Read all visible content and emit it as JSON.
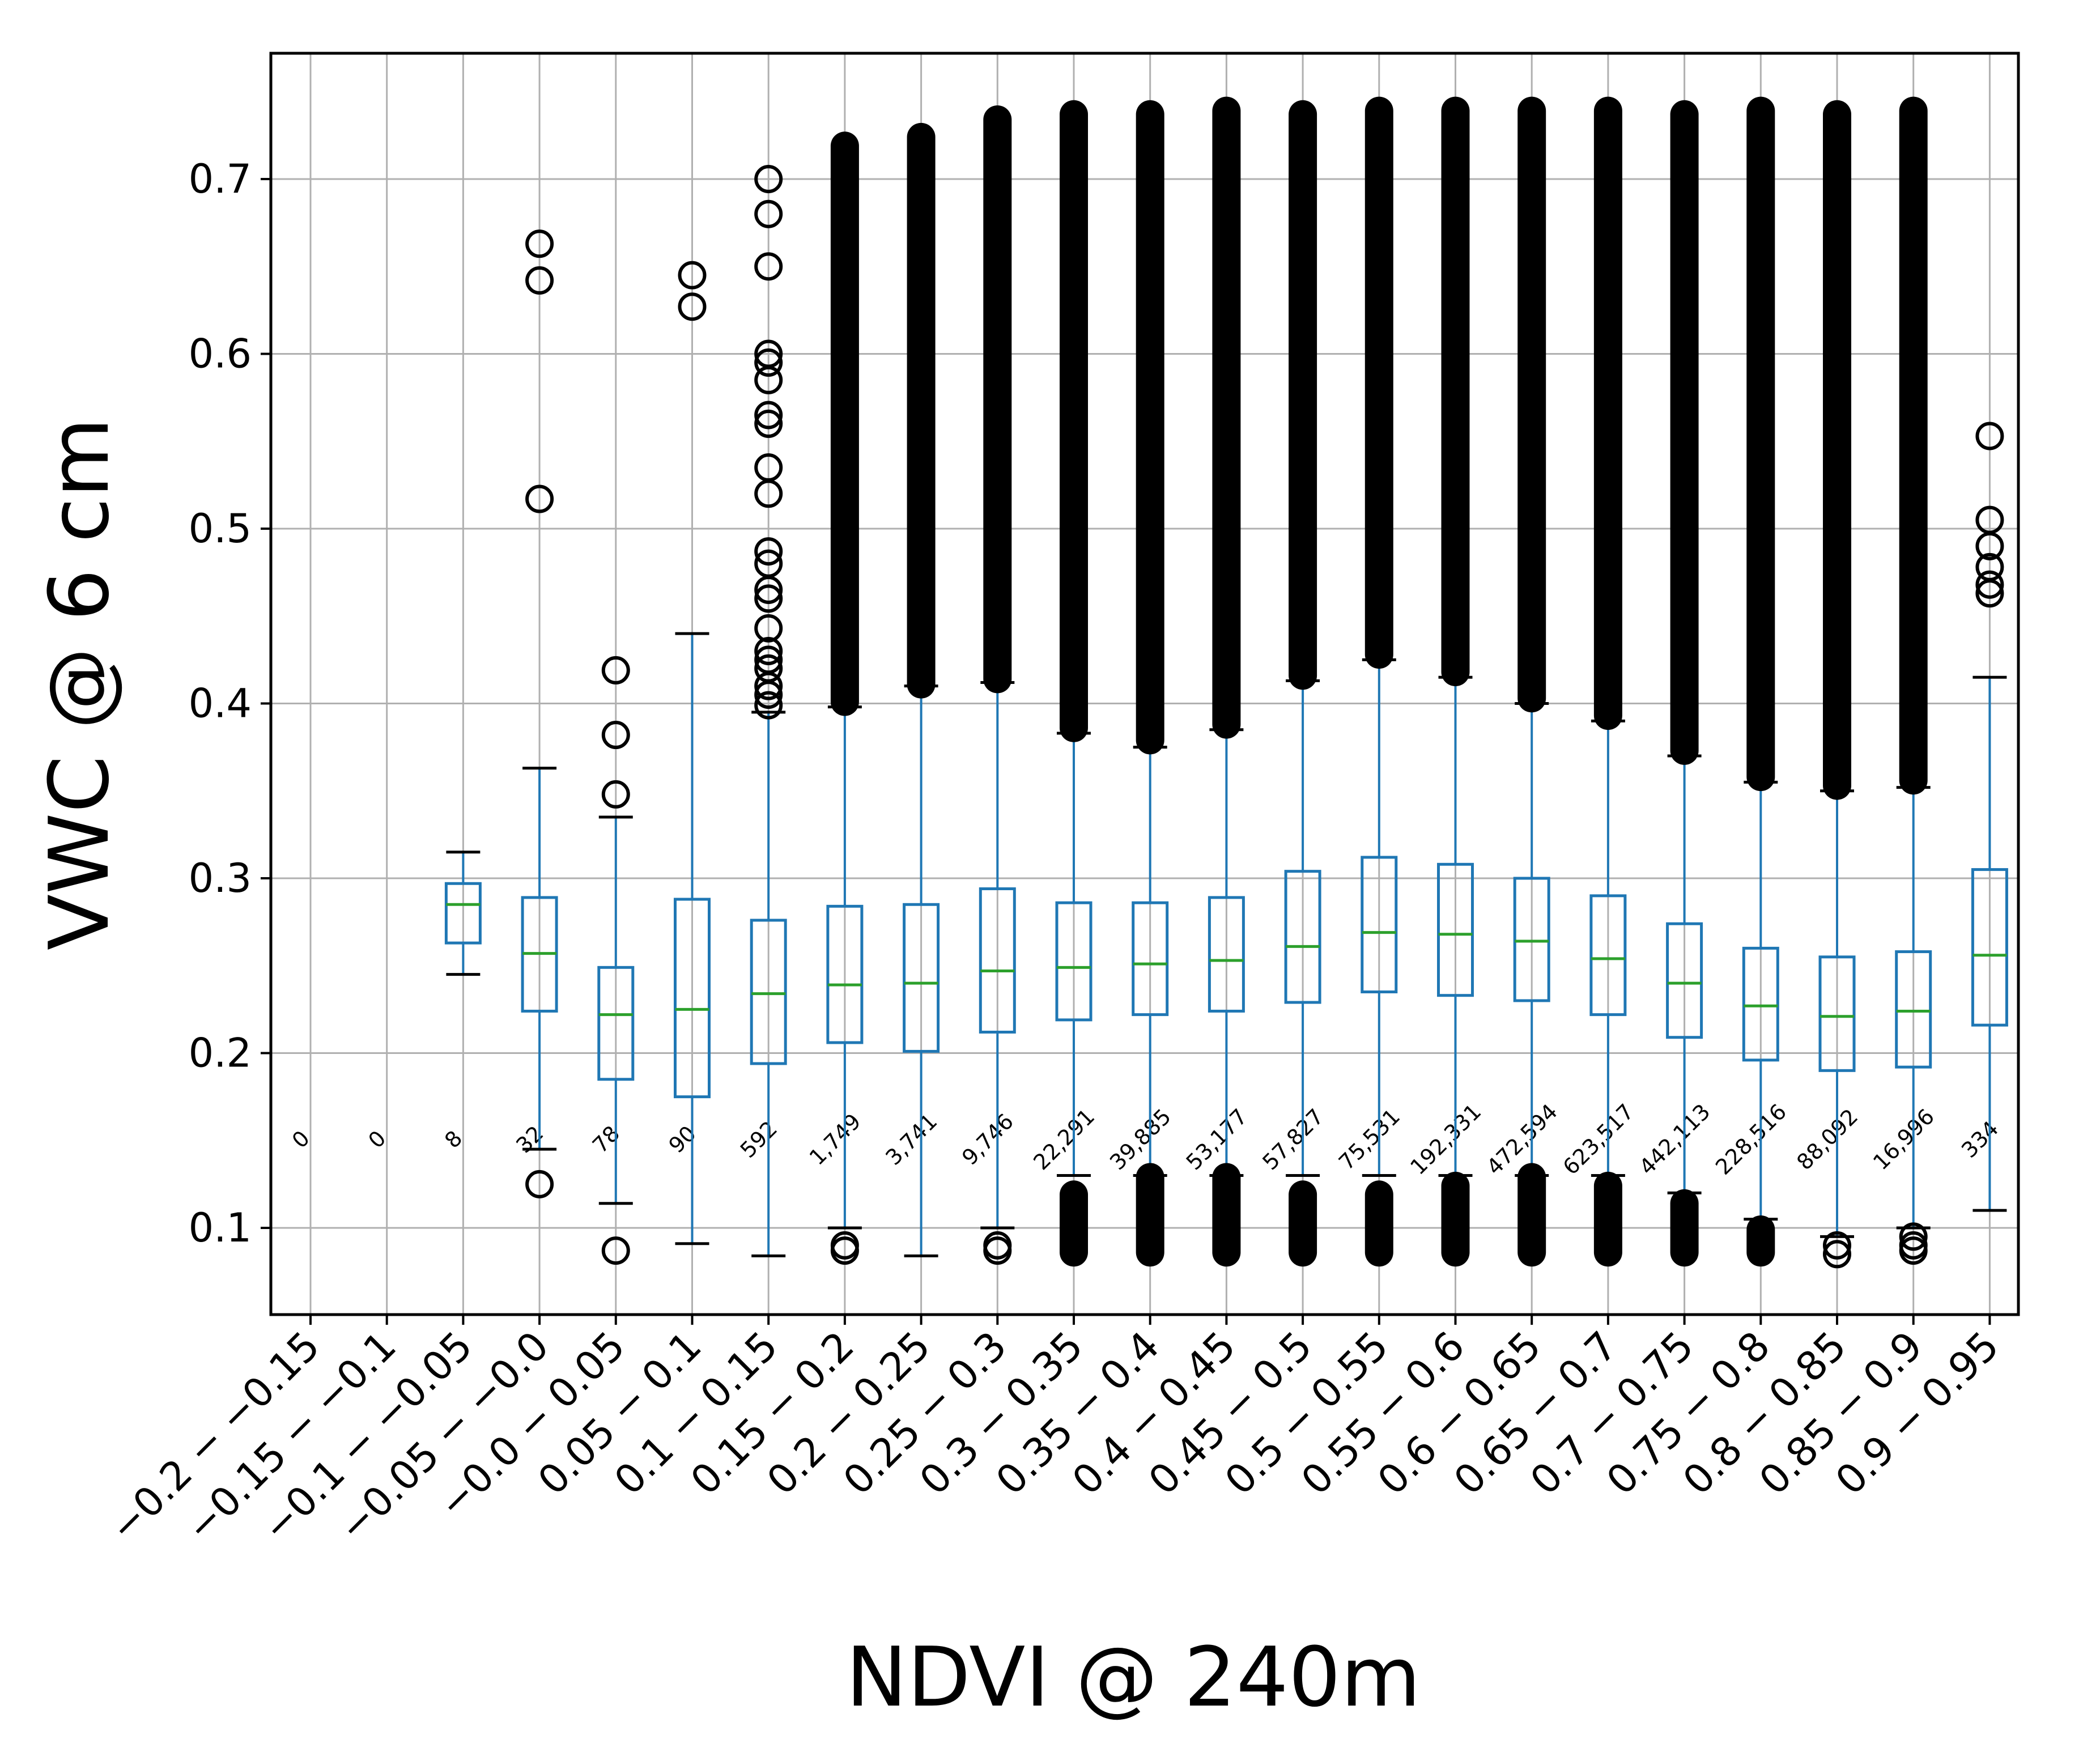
{
  "chart_data": {
    "type": "box",
    "xlabel": "NDVI @ 240m",
    "ylabel": "VWC @ 6 cm",
    "ylim": [
      0.05,
      0.773
    ],
    "yticks": [
      0.1,
      0.2,
      0.3,
      0.4,
      0.5,
      0.6,
      0.7
    ],
    "ytick_labels": [
      "0.1",
      "0.2",
      "0.3",
      "0.4",
      "0.5",
      "0.6",
      "0.7"
    ],
    "grid": true,
    "colors": {
      "box": "#1f77b4",
      "median": "#2ca02c",
      "flier": "#000000",
      "grid": "#b0b0b0",
      "axes": "#000000"
    },
    "categories": [
      "−0.2 − −0.15",
      "−0.15 − −0.1",
      "−0.1 − −0.05",
      "−0.05 − −0.0",
      "−0.0 − 0.05",
      "0.05 − 0.1",
      "0.1 − 0.15",
      "0.15 − 0.2",
      "0.2 − 0.25",
      "0.25 − 0.3",
      "0.3 − 0.35",
      "0.35 − 0.4",
      "0.4 − 0.45",
      "0.45 − 0.5",
      "0.5 − 0.55",
      "0.55 − 0.6",
      "0.6 − 0.65",
      "0.65 − 0.7",
      "0.7 − 0.75",
      "0.75 − 0.8",
      "0.8 − 0.85",
      "0.85 − 0.9",
      "0.9 − 0.95"
    ],
    "counts": [
      "0",
      "0",
      "8",
      "32",
      "78",
      "90",
      "592",
      "1,749",
      "3,741",
      "9,746",
      "22,291",
      "39,885",
      "53,177",
      "57,827",
      "75,531",
      "192,331",
      "472,594",
      "623,517",
      "442,113",
      "228,516",
      "88,092",
      "16,996",
      "334"
    ],
    "boxes": [
      null,
      null,
      {
        "whislo": 0.245,
        "q1": 0.263,
        "med": 0.285,
        "q3": 0.297,
        "whishi": 0.315,
        "fliers_high": [],
        "fliers_low": []
      },
      {
        "whislo": 0.145,
        "q1": 0.224,
        "med": 0.257,
        "q3": 0.289,
        "whishi": 0.363,
        "fliers_high": [
          0.517,
          0.642,
          0.663
        ],
        "fliers_low": [
          0.125
        ]
      },
      {
        "whislo": 0.114,
        "q1": 0.185,
        "med": 0.222,
        "q3": 0.249,
        "whishi": 0.335,
        "fliers_high": [
          0.348,
          0.382,
          0.419
        ],
        "fliers_low": [
          0.087
        ]
      },
      {
        "whislo": 0.091,
        "q1": 0.175,
        "med": 0.225,
        "q3": 0.288,
        "whishi": 0.44,
        "fliers_high": [
          0.627,
          0.645
        ],
        "fliers_low": []
      },
      {
        "whislo": 0.084,
        "q1": 0.194,
        "med": 0.234,
        "q3": 0.276,
        "whishi": 0.395,
        "fliers_high": [
          0.399,
          0.405,
          0.41,
          0.42,
          0.425,
          0.43,
          0.443,
          0.46,
          0.465,
          0.48,
          0.487,
          0.52,
          0.535,
          0.56,
          0.565,
          0.585,
          0.595,
          0.6,
          0.65,
          0.68,
          0.7
        ],
        "fliers_low": []
      },
      {
        "whislo": 0.1,
        "q1": 0.206,
        "med": 0.239,
        "q3": 0.284,
        "whishi": 0.398,
        "fliers_band_high": [
          0.4,
          0.72
        ],
        "fliers_low": [
          0.087,
          0.09
        ]
      },
      {
        "whislo": 0.084,
        "q1": 0.201,
        "med": 0.24,
        "q3": 0.285,
        "whishi": 0.41,
        "fliers_band_high": [
          0.41,
          0.725
        ],
        "fliers_low": []
      },
      {
        "whislo": 0.1,
        "q1": 0.212,
        "med": 0.247,
        "q3": 0.294,
        "whishi": 0.412,
        "fliers_band_high": [
          0.413,
          0.735
        ],
        "fliers_low": [
          0.087,
          0.09
        ]
      },
      {
        "whislo": 0.13,
        "q1": 0.219,
        "med": 0.249,
        "q3": 0.286,
        "whishi": 0.383,
        "fliers_band_high": [
          0.385,
          0.738
        ],
        "fliers_band_low": [
          0.085,
          0.12
        ]
      },
      {
        "whislo": 0.13,
        "q1": 0.222,
        "med": 0.251,
        "q3": 0.286,
        "whishi": 0.375,
        "fliers_band_high": [
          0.378,
          0.738
        ],
        "fliers_band_low": [
          0.085,
          0.13
        ]
      },
      {
        "whislo": 0.13,
        "q1": 0.224,
        "med": 0.253,
        "q3": 0.289,
        "whishi": 0.385,
        "fliers_band_high": [
          0.387,
          0.74
        ],
        "fliers_band_low": [
          0.085,
          0.13
        ]
      },
      {
        "whislo": 0.13,
        "q1": 0.229,
        "med": 0.261,
        "q3": 0.304,
        "whishi": 0.413,
        "fliers_band_high": [
          0.415,
          0.738
        ],
        "fliers_band_low": [
          0.085,
          0.12
        ]
      },
      {
        "whislo": 0.13,
        "q1": 0.235,
        "med": 0.269,
        "q3": 0.312,
        "whishi": 0.425,
        "fliers_band_high": [
          0.427,
          0.74
        ],
        "fliers_band_low": [
          0.085,
          0.12
        ]
      },
      {
        "whislo": 0.13,
        "q1": 0.233,
        "med": 0.268,
        "q3": 0.308,
        "whishi": 0.415,
        "fliers_band_high": [
          0.417,
          0.74
        ],
        "fliers_band_low": [
          0.085,
          0.125
        ]
      },
      {
        "whislo": 0.13,
        "q1": 0.23,
        "med": 0.264,
        "q3": 0.3,
        "whishi": 0.4,
        "fliers_band_high": [
          0.402,
          0.74
        ],
        "fliers_band_low": [
          0.085,
          0.13
        ]
      },
      {
        "whislo": 0.13,
        "q1": 0.222,
        "med": 0.254,
        "q3": 0.29,
        "whishi": 0.39,
        "fliers_band_high": [
          0.392,
          0.74
        ],
        "fliers_band_low": [
          0.085,
          0.125
        ]
      },
      {
        "whislo": 0.12,
        "q1": 0.209,
        "med": 0.24,
        "q3": 0.274,
        "whishi": 0.37,
        "fliers_band_high": [
          0.372,
          0.738
        ],
        "fliers_band_low": [
          0.085,
          0.115
        ]
      },
      {
        "whislo": 0.105,
        "q1": 0.196,
        "med": 0.227,
        "q3": 0.26,
        "whishi": 0.355,
        "fliers_band_high": [
          0.357,
          0.74
        ],
        "fliers_band_low": [
          0.085,
          0.1
        ]
      },
      {
        "whislo": 0.095,
        "q1": 0.19,
        "med": 0.221,
        "q3": 0.255,
        "whishi": 0.35,
        "fliers_band_high": [
          0.352,
          0.738
        ],
        "fliers_low": [
          0.085,
          0.09
        ]
      },
      {
        "whislo": 0.1,
        "q1": 0.192,
        "med": 0.224,
        "q3": 0.258,
        "whishi": 0.352,
        "fliers_band_high": [
          0.355,
          0.74
        ],
        "fliers_low": [
          0.087,
          0.09,
          0.095
        ]
      },
      {
        "whislo": 0.11,
        "q1": 0.216,
        "med": 0.256,
        "q3": 0.305,
        "whishi": 0.415,
        "fliers_high": [
          0.463,
          0.468,
          0.478,
          0.49,
          0.505,
          0.553
        ],
        "fliers_low": []
      }
    ]
  }
}
